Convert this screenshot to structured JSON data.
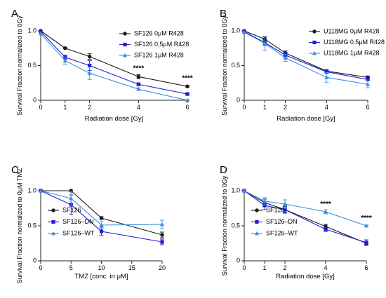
{
  "style": {
    "colors": {
      "black": "#1a1a1a",
      "blue": "#1f1fd6",
      "light_blue": "#3d8fe0"
    },
    "markers": {
      "black": "circle",
      "blue": "square",
      "light_blue": "triangle"
    }
  },
  "chart_data": [
    {
      "panel": "A",
      "type": "line",
      "xlabel": "Radiation dose [Gy]",
      "ylabel": "Survival Fraction normalized to 0Gy",
      "xlim": [
        0,
        6
      ],
      "ylim": [
        0,
        1.0
      ],
      "xticks": [
        0,
        1,
        2,
        4,
        6
      ],
      "yticks": [
        0.0,
        0.5,
        1.0
      ],
      "ytick_labels": [
        "0",
        "0.5",
        "1.0"
      ],
      "legend_position": "top-right",
      "series": [
        {
          "name": "SF126 0μM R428",
          "color": "#1a1a1a",
          "marker": "circle",
          "x": [
            0,
            1,
            2,
            4,
            6
          ],
          "y": [
            1.0,
            0.75,
            0.63,
            0.34,
            0.2
          ],
          "err": [
            0,
            0.01,
            0.04,
            0.03,
            0.01
          ]
        },
        {
          "name": "SF126 0,5μM R428",
          "color": "#1f1fd6",
          "marker": "square",
          "x": [
            0,
            1,
            2,
            4,
            6
          ],
          "y": [
            0.99,
            0.62,
            0.5,
            0.23,
            0.09
          ],
          "err": [
            0,
            0.03,
            0.07,
            0.02,
            0.01
          ]
        },
        {
          "name": "SF126 1μM R428",
          "color": "#3d8fe0",
          "marker": "triangle",
          "x": [
            0,
            1,
            2,
            4,
            6
          ],
          "y": [
            0.96,
            0.57,
            0.39,
            0.16,
            0.0
          ],
          "err": [
            0,
            0.05,
            0.09,
            0.02,
            0.01
          ]
        }
      ],
      "annotations": [
        {
          "text": "****",
          "x": 4,
          "y": 0.43
        },
        {
          "text": "****",
          "x": 6,
          "y": 0.29
        }
      ]
    },
    {
      "panel": "B",
      "type": "line",
      "xlabel": "Radiation dose [Gy]",
      "ylabel": "Survival Fraction normalized to 0Gy",
      "xlim": [
        0,
        6
      ],
      "ylim": [
        0,
        1.0
      ],
      "xticks": [
        0,
        1,
        2,
        4,
        6
      ],
      "yticks": [
        0.0,
        0.5,
        1.0
      ],
      "ytick_labels": [
        "0",
        "0.5",
        "1.0"
      ],
      "legend_position": "top-right",
      "series": [
        {
          "name": "U118MG 0μM R428",
          "color": "#1a1a1a",
          "marker": "circle",
          "x": [
            0,
            1,
            2,
            4,
            6
          ],
          "y": [
            1.0,
            0.88,
            0.68,
            0.42,
            0.33
          ],
          "err": [
            0,
            0.03,
            0.03,
            0.02,
            0.02
          ]
        },
        {
          "name": "U118MG 0.5μM R428",
          "color": "#1f1fd6",
          "marker": "square",
          "x": [
            0,
            1,
            2,
            4,
            6
          ],
          "y": [
            0.99,
            0.83,
            0.65,
            0.41,
            0.3
          ],
          "err": [
            0,
            0.04,
            0.04,
            0.02,
            0.02
          ]
        },
        {
          "name": "U118MG 1μM R428",
          "color": "#3d8fe0",
          "marker": "triangle",
          "x": [
            0,
            1,
            2,
            4,
            6
          ],
          "y": [
            0.98,
            0.82,
            0.61,
            0.33,
            0.23
          ],
          "err": [
            0,
            0.1,
            0.05,
            0.07,
            0.05
          ]
        }
      ],
      "annotations": []
    },
    {
      "panel": "C",
      "type": "line",
      "xlabel": "TMZ [conc. in μM]",
      "ylabel": "Survival Fraction normalized to 0μM TMZ",
      "xlim": [
        0,
        20
      ],
      "ylim": [
        0,
        1.0
      ],
      "xticks": [
        0,
        5,
        10,
        15,
        20
      ],
      "yticks": [
        0.0,
        0.5,
        1.0
      ],
      "ytick_labels": [
        "0",
        "0.5",
        "1.0"
      ],
      "legend_position": "bottom-left",
      "series": [
        {
          "name": "SF126",
          "color": "#1a1a1a",
          "marker": "circle",
          "x": [
            0,
            5,
            10,
            20
          ],
          "y": [
            1.0,
            1.0,
            0.61,
            0.37
          ],
          "err": [
            0,
            0.0,
            0.02,
            0.04
          ]
        },
        {
          "name": "SF126–DN",
          "color": "#1f1fd6",
          "marker": "square",
          "x": [
            0,
            5,
            10,
            20
          ],
          "y": [
            1.0,
            0.8,
            0.42,
            0.27
          ],
          "err": [
            0,
            0.14,
            0.06,
            0.04
          ]
        },
        {
          "name": "SF126–WT",
          "color": "#3d8fe0",
          "marker": "triangle",
          "x": [
            0,
            5,
            10,
            20
          ],
          "y": [
            1.0,
            0.89,
            0.51,
            0.52
          ],
          "err": [
            0,
            0.1,
            0.05,
            0.06
          ]
        }
      ],
      "annotations": []
    },
    {
      "panel": "D",
      "type": "line",
      "xlabel": "Radiation dose [Gy]",
      "ylabel": "Survival Fraction normalized to 0Gy",
      "xlim": [
        0,
        6
      ],
      "ylim": [
        0,
        1.0
      ],
      "xticks": [
        0,
        1,
        2,
        4,
        6
      ],
      "yticks": [
        0.0,
        0.5,
        1.0
      ],
      "ytick_labels": [
        "0",
        "0.5",
        "1.0"
      ],
      "legend_position": "bottom-left",
      "series": [
        {
          "name": "SF126",
          "color": "#1a1a1a",
          "marker": "circle",
          "x": [
            0,
            1,
            2,
            4,
            6
          ],
          "y": [
            1.0,
            0.83,
            0.73,
            0.49,
            0.25
          ],
          "err": [
            0,
            0.05,
            0.04,
            0.03,
            0.02
          ]
        },
        {
          "name": "SF126–DN",
          "color": "#1f1fd6",
          "marker": "square",
          "x": [
            0,
            1,
            2,
            4,
            6
          ],
          "y": [
            1.0,
            0.79,
            0.73,
            0.45,
            0.26
          ],
          "err": [
            0,
            0.06,
            0.05,
            0.03,
            0.04
          ]
        },
        {
          "name": "SF126–WT",
          "color": "#3d8fe0",
          "marker": "triangle",
          "x": [
            0,
            1,
            2,
            4,
            6
          ],
          "y": [
            1.0,
            0.85,
            0.81,
            0.7,
            0.5
          ],
          "err": [
            0,
            0.05,
            0.06,
            0.03,
            0.01
          ]
        }
      ],
      "annotations": [
        {
          "text": "****",
          "x": 4,
          "y": 0.78
        },
        {
          "text": "****",
          "x": 6,
          "y": 0.58
        }
      ]
    }
  ]
}
